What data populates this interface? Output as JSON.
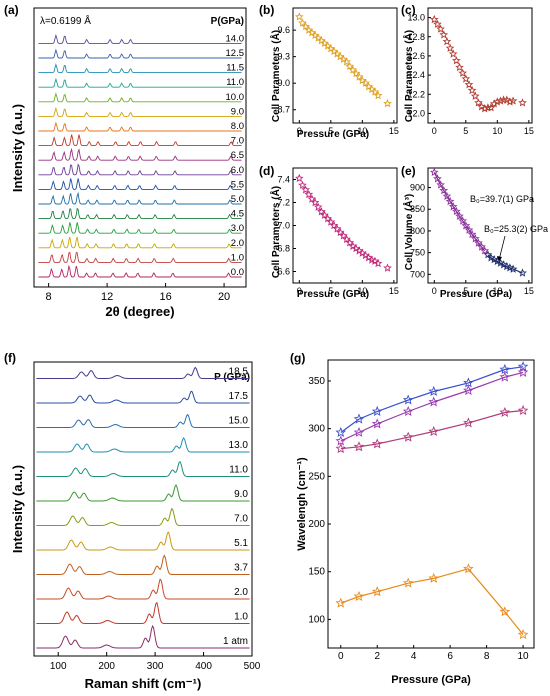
{
  "chart_data": [
    {
      "id": "a",
      "type": "line",
      "panel_label": "(a)",
      "annotation": "λ=0.6199 Å",
      "legend_title": "P(GPa)",
      "xlabel": "2θ (degree)",
      "ylabel": "Intensity (a.u.)",
      "xlim": [
        7,
        21.5
      ],
      "x_ticks": [
        8,
        12,
        16,
        20
      ],
      "series": [
        {
          "name": "0.0",
          "color": "#b0245e"
        },
        {
          "name": "1.0",
          "color": "#c33f3f"
        },
        {
          "name": "2.0",
          "color": "#c8a800"
        },
        {
          "name": "3.0",
          "color": "#22a23a"
        },
        {
          "name": "4.5",
          "color": "#1d7f42"
        },
        {
          "name": "5.0",
          "color": "#1e6fa8"
        },
        {
          "name": "5.5",
          "color": "#1f4fa3"
        },
        {
          "name": "6.0",
          "color": "#6a3d9a"
        },
        {
          "name": "6.5",
          "color": "#9b2f7a"
        },
        {
          "name": "7.0",
          "color": "#c0392b"
        },
        {
          "name": "8.0",
          "color": "#e8731a"
        },
        {
          "name": "9.0",
          "color": "#d4a300"
        },
        {
          "name": "10.0",
          "color": "#6ab023"
        },
        {
          "name": "11.0",
          "color": "#1fa58f"
        },
        {
          "name": "11.5",
          "color": "#1f8fb5"
        },
        {
          "name": "12.5",
          "color": "#3a5fb0"
        },
        {
          "name": "14.0",
          "color": "#5a4a9a"
        }
      ]
    },
    {
      "id": "b",
      "type": "scatter",
      "panel_label": "(b)",
      "xlabel": "Pressure (GPa)",
      "ylabel": "Cell Parameters (Å)",
      "xlim": [
        -1,
        15.5
      ],
      "ylim": [
        8.55,
        9.85
      ],
      "x_ticks": [
        0,
        5,
        10,
        15
      ],
      "y_ticks": [
        8.7,
        9.0,
        9.3,
        9.6
      ],
      "color": "#e0a020",
      "x": [
        0,
        0.5,
        1,
        1.5,
        2,
        2.5,
        3,
        3.5,
        4,
        4.5,
        5,
        5.5,
        6,
        6.5,
        7,
        7.5,
        8,
        8.5,
        9,
        9.5,
        10,
        10.5,
        11,
        11.5,
        12,
        12.5,
        14
      ],
      "y": [
        9.75,
        9.68,
        9.64,
        9.6,
        9.57,
        9.54,
        9.51,
        9.48,
        9.45,
        9.42,
        9.39,
        9.36,
        9.33,
        9.3,
        9.27,
        9.24,
        9.19,
        9.15,
        9.11,
        9.07,
        9.03,
        9.0,
        8.96,
        8.93,
        8.9,
        8.86,
        8.77
      ]
    },
    {
      "id": "c",
      "type": "scatter",
      "panel_label": "(c)",
      "xlabel": "",
      "ylabel": "Cell Parameters (Å)",
      "xlim": [
        -1,
        15.5
      ],
      "ylim": [
        11.9,
        13.1
      ],
      "x_ticks": [
        0,
        5,
        10,
        15
      ],
      "y_ticks": [
        12.0,
        12.2,
        12.4,
        12.6,
        12.8,
        13.0
      ],
      "color": "#b03a2e",
      "x": [
        0,
        0.5,
        1,
        1.5,
        2,
        2.5,
        3,
        3.5,
        4,
        4.5,
        5,
        5.5,
        6,
        6.5,
        7,
        7.5,
        8,
        8.5,
        9,
        9.5,
        10,
        10.5,
        11,
        11.5,
        12,
        12.5,
        14
      ],
      "y": [
        12.98,
        12.93,
        12.88,
        12.82,
        12.75,
        12.68,
        12.62,
        12.55,
        12.48,
        12.42,
        12.36,
        12.3,
        12.24,
        12.18,
        12.11,
        12.07,
        12.05,
        12.06,
        12.06,
        12.1,
        12.12,
        12.13,
        12.14,
        12.14,
        12.12,
        12.13,
        12.11
      ]
    },
    {
      "id": "d",
      "type": "scatter",
      "panel_label": "(d)",
      "xlabel": "Pressure (GPa)",
      "ylabel": "Cell Parameters (Å)",
      "xlim": [
        -1,
        15.5
      ],
      "ylim": [
        6.5,
        7.5
      ],
      "x_ticks": [
        0,
        5,
        10,
        15
      ],
      "y_ticks": [
        6.6,
        6.8,
        7.0,
        7.2,
        7.4
      ],
      "color": "#c0267a",
      "x": [
        0,
        0.5,
        1,
        1.5,
        2,
        2.5,
        3,
        3.5,
        4,
        4.5,
        5,
        5.5,
        6,
        6.5,
        7,
        7.5,
        8,
        8.5,
        9,
        9.5,
        10,
        10.5,
        11,
        11.5,
        12,
        12.5,
        14
      ],
      "y": [
        7.41,
        7.35,
        7.31,
        7.27,
        7.23,
        7.2,
        7.16,
        7.12,
        7.09,
        7.06,
        7.03,
        7.0,
        6.97,
        6.94,
        6.91,
        6.88,
        6.85,
        6.82,
        6.8,
        6.78,
        6.76,
        6.74,
        6.72,
        6.7,
        6.69,
        6.67,
        6.63
      ]
    },
    {
      "id": "e",
      "type": "scatter",
      "panel_label": "(e)",
      "xlabel": "Pressure (GPa)",
      "ylabel": "Cell Volume (Å³)",
      "xlim": [
        -1,
        15.5
      ],
      "ylim": [
        680,
        945
      ],
      "x_ticks": [
        0,
        5,
        10,
        15
      ],
      "y_ticks": [
        700,
        750,
        800,
        850,
        900
      ],
      "annotations": [
        "B₀=39.7(1) GPa",
        "B₀=25.3(2) GPa"
      ],
      "series": [
        {
          "color": "#8a2f9a",
          "x": [
            0,
            0.5,
            1,
            1.5,
            2,
            2.5,
            3,
            3.5,
            4,
            4.5,
            5,
            5.5,
            6,
            6.5,
            7,
            7.5,
            8
          ],
          "y": [
            935,
            920,
            906,
            893,
            880,
            868,
            856,
            845,
            834,
            823,
            812,
            802,
            792,
            782,
            772,
            763,
            754
          ]
        },
        {
          "color": "#23306e",
          "x": [
            8.5,
            9,
            9.5,
            10,
            10.5,
            11,
            11.5,
            12,
            12.5,
            14
          ],
          "y": [
            745,
            738,
            734,
            730,
            726,
            722,
            718,
            715,
            712,
            703
          ]
        }
      ]
    },
    {
      "id": "f",
      "type": "line",
      "panel_label": "(f)",
      "legend_title": "P (GPa)",
      "xlabel": "Raman shift (cm⁻¹)",
      "ylabel": "Intensity (a.u.)",
      "xlim": [
        50,
        500
      ],
      "x_ticks": [
        100,
        200,
        300,
        400,
        500
      ],
      "series": [
        {
          "name": "1 atm",
          "color": "#8a2f6a"
        },
        {
          "name": "1.0",
          "color": "#c0392b"
        },
        {
          "name": "2.0",
          "color": "#c84a2a"
        },
        {
          "name": "3.7",
          "color": "#c0601f"
        },
        {
          "name": "5.1",
          "color": "#c99a12"
        },
        {
          "name": "7.0",
          "color": "#8a9a12"
        },
        {
          "name": "9.0",
          "color": "#3a9a2f"
        },
        {
          "name": "11.0",
          "color": "#1f8f7a"
        },
        {
          "name": "13.0",
          "color": "#1f8fb0"
        },
        {
          "name": "15.0",
          "color": "#2a6fb0"
        },
        {
          "name": "17.5",
          "color": "#2a4fa0"
        },
        {
          "name": "18.5",
          "color": "#4a3a8a"
        }
      ]
    },
    {
      "id": "g",
      "type": "line",
      "panel_label": "(g)",
      "xlabel": "Pressure (GPa)",
      "ylabel": "Wavelengh (cm⁻¹)",
      "xlim": [
        -0.7,
        10.6
      ],
      "ylim": [
        70,
        372
      ],
      "x_ticks": [
        0,
        2,
        4,
        6,
        8,
        10
      ],
      "y_ticks": [
        100,
        150,
        200,
        250,
        300,
        350
      ],
      "series": [
        {
          "color": "#3a4fd0",
          "x": [
            0,
            1,
            2,
            3.7,
            5.1,
            7,
            9,
            10
          ],
          "y": [
            296,
            310,
            318,
            330,
            339,
            348,
            362,
            365
          ]
        },
        {
          "color": "#9a3ab0",
          "x": [
            0,
            1,
            2,
            3.7,
            5.1,
            7,
            9,
            10
          ],
          "y": [
            287,
            296,
            305,
            318,
            328,
            340,
            354,
            359
          ]
        },
        {
          "color": "#b03a7a",
          "x": [
            0,
            1,
            2,
            3.7,
            5.1,
            7,
            9,
            10
          ],
          "y": [
            279,
            281,
            284,
            291,
            297,
            306,
            317,
            319
          ]
        },
        {
          "color": "#e88a1a",
          "x": [
            0,
            1,
            2,
            3.7,
            5.1,
            7,
            9,
            10
          ],
          "y": [
            117,
            124,
            129,
            138,
            143,
            153,
            108,
            84
          ]
        }
      ]
    }
  ]
}
